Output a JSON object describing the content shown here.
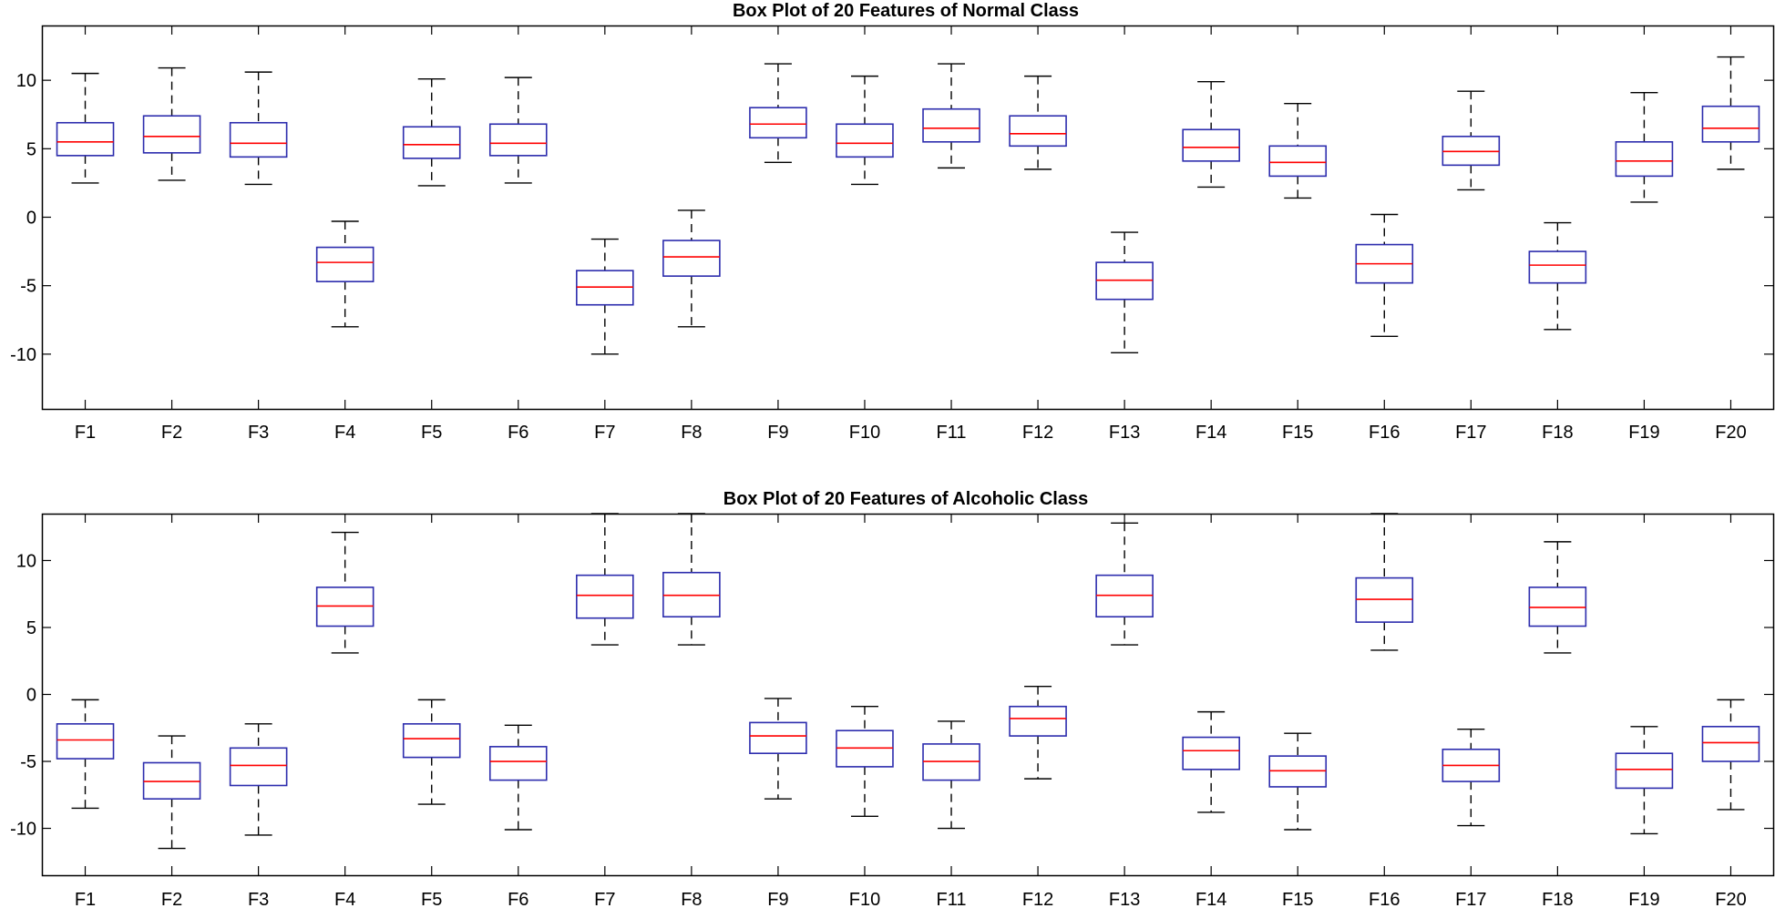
{
  "chart_data": [
    {
      "type": "box",
      "title": "Box Plot of 20 Features of Normal Class",
      "xlabel": "",
      "ylabel": "",
      "ylim": [
        -14,
        14
      ],
      "yticks": [
        10,
        5,
        0,
        -5,
        -10
      ],
      "ytick_labels": [
        "10",
        "5",
        "0",
        "-5",
        "-10"
      ],
      "categories": [
        "F1",
        "F2",
        "F3",
        "F4",
        "F5",
        "F6",
        "F7",
        "F8",
        "F9",
        "F10",
        "F11",
        "F12",
        "F13",
        "F14",
        "F15",
        "F16",
        "F17",
        "F18",
        "F19",
        "F20"
      ],
      "boxes": [
        {
          "whisker_low": 2.5,
          "q1": 4.5,
          "median": 5.5,
          "q3": 6.9,
          "whisker_high": 10.5
        },
        {
          "whisker_low": 2.7,
          "q1": 4.7,
          "median": 5.9,
          "q3": 7.4,
          "whisker_high": 10.9
        },
        {
          "whisker_low": 2.4,
          "q1": 4.4,
          "median": 5.4,
          "q3": 6.9,
          "whisker_high": 10.6
        },
        {
          "whisker_low": -8.0,
          "q1": -4.7,
          "median": -3.3,
          "q3": -2.2,
          "whisker_high": -0.3
        },
        {
          "whisker_low": 2.3,
          "q1": 4.3,
          "median": 5.3,
          "q3": 6.6,
          "whisker_high": 10.1
        },
        {
          "whisker_low": 2.5,
          "q1": 4.5,
          "median": 5.4,
          "q3": 6.8,
          "whisker_high": 10.2
        },
        {
          "whisker_low": -10.0,
          "q1": -6.4,
          "median": -5.1,
          "q3": -3.9,
          "whisker_high": -1.6
        },
        {
          "whisker_low": -8.0,
          "q1": -4.3,
          "median": -2.9,
          "q3": -1.7,
          "whisker_high": 0.5
        },
        {
          "whisker_low": 4.0,
          "q1": 5.8,
          "median": 6.8,
          "q3": 8.0,
          "whisker_high": 11.2
        },
        {
          "whisker_low": 2.4,
          "q1": 4.4,
          "median": 5.4,
          "q3": 6.8,
          "whisker_high": 10.3
        },
        {
          "whisker_low": 3.6,
          "q1": 5.5,
          "median": 6.5,
          "q3": 7.9,
          "whisker_high": 11.2
        },
        {
          "whisker_low": 3.5,
          "q1": 5.2,
          "median": 6.1,
          "q3": 7.4,
          "whisker_high": 10.3
        },
        {
          "whisker_low": -9.9,
          "q1": -6.0,
          "median": -4.6,
          "q3": -3.3,
          "whisker_high": -1.1
        },
        {
          "whisker_low": 2.2,
          "q1": 4.1,
          "median": 5.1,
          "q3": 6.4,
          "whisker_high": 9.9
        },
        {
          "whisker_low": 1.4,
          "q1": 3.0,
          "median": 4.0,
          "q3": 5.2,
          "whisker_high": 8.3
        },
        {
          "whisker_low": -8.7,
          "q1": -4.8,
          "median": -3.4,
          "q3": -2.0,
          "whisker_high": 0.2
        },
        {
          "whisker_low": 2.0,
          "q1": 3.8,
          "median": 4.8,
          "q3": 5.9,
          "whisker_high": 9.2
        },
        {
          "whisker_low": -8.2,
          "q1": -4.8,
          "median": -3.5,
          "q3": -2.5,
          "whisker_high": -0.4
        },
        {
          "whisker_low": 1.1,
          "q1": 3.0,
          "median": 4.1,
          "q3": 5.5,
          "whisker_high": 9.1
        },
        {
          "whisker_low": 3.5,
          "q1": 5.5,
          "median": 6.5,
          "q3": 8.1,
          "whisker_high": 11.7
        }
      ]
    },
    {
      "type": "box",
      "title": "Box Plot of 20 Features of Alcoholic Class",
      "xlabel": "",
      "ylabel": "",
      "ylim": [
        -13.5,
        13.5
      ],
      "yticks": [
        10,
        5,
        0,
        -5,
        -10
      ],
      "ytick_labels": [
        "10",
        "5",
        "0",
        "-5",
        "-10"
      ],
      "categories": [
        "F1",
        "F2",
        "F3",
        "F4",
        "F5",
        "F6",
        "F7",
        "F8",
        "F9",
        "F10",
        "F11",
        "F12",
        "F13",
        "F14",
        "F15",
        "F16",
        "F17",
        "F18",
        "F19",
        "F20"
      ],
      "boxes": [
        {
          "whisker_low": -8.5,
          "q1": -4.8,
          "median": -3.4,
          "q3": -2.2,
          "whisker_high": -0.4
        },
        {
          "whisker_low": -11.5,
          "q1": -7.8,
          "median": -6.5,
          "q3": -5.1,
          "whisker_high": -3.1
        },
        {
          "whisker_low": -10.5,
          "q1": -6.8,
          "median": -5.3,
          "q3": -4.0,
          "whisker_high": -2.2
        },
        {
          "whisker_low": 3.1,
          "q1": 5.1,
          "median": 6.6,
          "q3": 8.0,
          "whisker_high": 12.1
        },
        {
          "whisker_low": -8.2,
          "q1": -4.7,
          "median": -3.3,
          "q3": -2.2,
          "whisker_high": -0.4
        },
        {
          "whisker_low": -10.1,
          "q1": -6.4,
          "median": -5.0,
          "q3": -3.9,
          "whisker_high": -2.3
        },
        {
          "whisker_low": 3.7,
          "q1": 5.7,
          "median": 7.4,
          "q3": 8.9,
          "whisker_high": 13.5
        },
        {
          "whisker_low": 3.7,
          "q1": 5.8,
          "median": 7.4,
          "q3": 9.1,
          "whisker_high": 13.5
        },
        {
          "whisker_low": -7.8,
          "q1": -4.4,
          "median": -3.1,
          "q3": -2.1,
          "whisker_high": -0.3
        },
        {
          "whisker_low": -9.1,
          "q1": -5.4,
          "median": -4.0,
          "q3": -2.7,
          "whisker_high": -0.9
        },
        {
          "whisker_low": -10.0,
          "q1": -6.4,
          "median": -5.0,
          "q3": -3.7,
          "whisker_high": -2.0
        },
        {
          "whisker_low": -6.3,
          "q1": -3.1,
          "median": -1.8,
          "q3": -0.9,
          "whisker_high": 0.6
        },
        {
          "whisker_low": 3.7,
          "q1": 5.8,
          "median": 7.4,
          "q3": 8.9,
          "whisker_high": 12.8
        },
        {
          "whisker_low": -8.8,
          "q1": -5.6,
          "median": -4.2,
          "q3": -3.2,
          "whisker_high": -1.3
        },
        {
          "whisker_low": -10.1,
          "q1": -6.9,
          "median": -5.7,
          "q3": -4.6,
          "whisker_high": -2.9
        },
        {
          "whisker_low": 3.3,
          "q1": 5.4,
          "median": 7.1,
          "q3": 8.7,
          "whisker_high": 13.5
        },
        {
          "whisker_low": -9.8,
          "q1": -6.5,
          "median": -5.3,
          "q3": -4.1,
          "whisker_high": -2.6
        },
        {
          "whisker_low": 3.1,
          "q1": 5.1,
          "median": 6.5,
          "q3": 8.0,
          "whisker_high": 11.4
        },
        {
          "whisker_low": -10.4,
          "q1": -7.0,
          "median": -5.6,
          "q3": -4.4,
          "whisker_high": -2.4
        },
        {
          "whisker_low": -8.6,
          "q1": -5.0,
          "median": -3.6,
          "q3": -2.4,
          "whisker_high": -0.4
        }
      ]
    }
  ],
  "colors": {
    "box": "#2c2cad",
    "median": "#ff0000",
    "whisker": "#000000",
    "axis": "#000000"
  }
}
